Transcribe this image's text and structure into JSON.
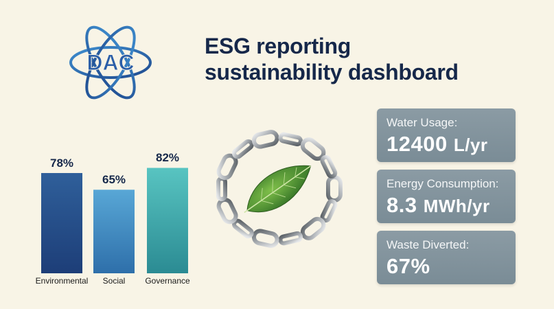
{
  "logo": {
    "text": "DAC"
  },
  "header": {
    "title_line1": "ESG reporting",
    "title_line2": "sustainability dashboard"
  },
  "chart_data": {
    "type": "bar",
    "categories": [
      "Environmental",
      "Social",
      "Governance"
    ],
    "values": [
      78,
      65,
      82
    ],
    "value_labels": [
      "78%",
      "65%",
      "82%"
    ],
    "title": "",
    "xlabel": "",
    "ylabel": "",
    "ylim": [
      0,
      100
    ],
    "colors": [
      [
        "#2f5f9a",
        "#1d3e78"
      ],
      [
        "#58a7d6",
        "#2e6faa"
      ],
      [
        "#58c4c1",
        "#2b8b93"
      ]
    ]
  },
  "metrics": [
    {
      "label": "Water Usage:",
      "value": "12400",
      "unit": "L/yr"
    },
    {
      "label": "Energy Consumption:",
      "value": "8.3",
      "unit": "MWh/yr"
    },
    {
      "label": "Waste Diverted:",
      "value": "67%",
      "unit": ""
    }
  ],
  "illustration": {
    "icon": "chain-leaf-icon"
  },
  "colors": {
    "background": "#f8f4e6",
    "title": "#16284a",
    "card": "#84959f",
    "logo": "#2a5ea8"
  }
}
